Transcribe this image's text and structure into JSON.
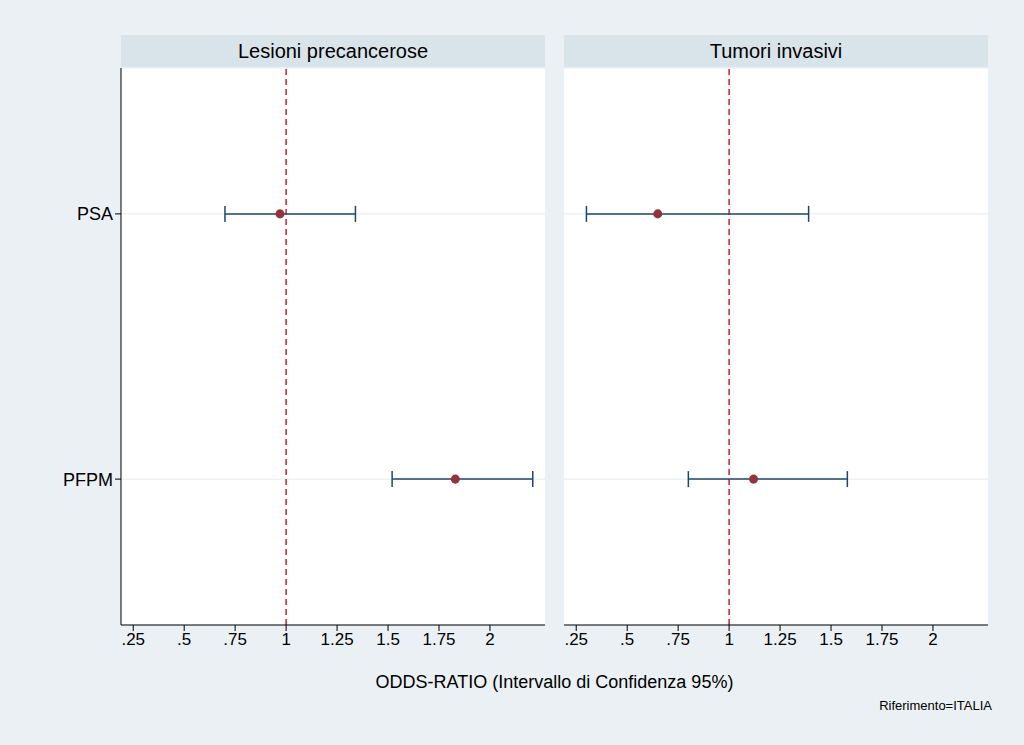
{
  "chart_data": {
    "type": "forest",
    "xlabel": "ODDS-RATIO (Intervallo di Confidenza 95%)",
    "note": "Riferimento=ITALIA",
    "categories": [
      "PSA",
      "PFPM"
    ],
    "xlim": [
      0.19,
      2.27
    ],
    "xticks": [
      {
        "value": 0.25,
        "label": ".25"
      },
      {
        "value": 0.5,
        "label": ".5"
      },
      {
        "value": 0.75,
        "label": ".75"
      },
      1,
      1.25,
      1.5,
      1.75,
      2
    ],
    "reference": 1,
    "color": "#90353b",
    "panels": [
      {
        "title": "Lesioni precancerose",
        "values": [
          0.97,
          1.83
        ],
        "ci_low": [
          0.7,
          1.52
        ],
        "ci_high": [
          1.34,
          2.21
        ]
      },
      {
        "title": "Tumori invasivi",
        "values": [
          0.65,
          1.12
        ],
        "ci_low": [
          0.3,
          0.8
        ],
        "ci_high": [
          1.39,
          1.58
        ]
      }
    ]
  }
}
